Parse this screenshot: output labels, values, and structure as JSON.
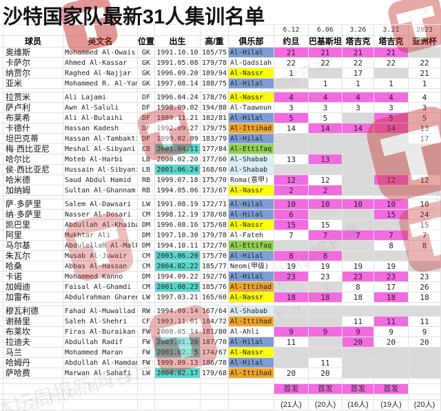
{
  "title": "沙特国家队最新31人集训名单",
  "columns": {
    "player": "球员",
    "name_en": "英文名",
    "pos": "位置",
    "born": "出生",
    "hw": "高/重",
    "club": "俱乐部"
  },
  "matches": [
    {
      "date": "6.12",
      "opp": "约旦"
    },
    {
      "date": "6.06",
      "opp": "巴基斯坦"
    },
    {
      "date": "3.26",
      "opp": "塔吉克"
    },
    {
      "date": "3.21",
      "opp": "塔吉克"
    },
    {
      "date": "2023",
      "opp": "亚洲杯"
    }
  ],
  "legend_starter": "首发",
  "totals": [
    "(21人)",
    "(20人)",
    "(16人)",
    "(19人)",
    "(20人)"
  ],
  "colors": {
    "starter_pink": "#F26BE0",
    "young_teal": "#58D6CD",
    "absent_gray": "#D9D9D9",
    "hilal_blue": "#7D9DD4",
    "nassr_yellow": "#FFFF00",
    "ittihad_orange": "#F0A528",
    "ettifaq_green": "#92D050",
    "shabab_cyan": "#DAEEF3",
    "logo_red": "#C62F2F"
  },
  "club_colors": {
    "Al-Hilal": "hilal_blue",
    "Al-Nassr": "nassr_yellow",
    "Al-Ittihad": "ittihad_orange",
    "Al-Ettifaq": "ettifaq_green",
    "Al-Shabab": "shabab_cyan"
  },
  "group_sizes": [
    4,
    10,
    10,
    7
  ],
  "players": [
    {
      "cn": "奥维斯",
      "en": "Mohammed Al-Owais",
      "pos": "GK",
      "born": "1991.10.10",
      "hl": false,
      "hw": "185/75",
      "club": "Al-Hilal",
      "cells": [
        [
          "21",
          "p"
        ],
        [
          "21",
          "p"
        ],
        [
          "21",
          "p"
        ],
        [
          "21",
          "p"
        ],
        [
          "",
          "g"
        ]
      ]
    },
    {
      "cn": "卡萨尔",
      "en": "Ahmed Al-Kassar",
      "pos": "GK",
      "born": "1991.05.08",
      "hl": false,
      "hw": "179/78",
      "club": "Al-Qadsiah",
      "cells": [
        [
          "22",
          "w"
        ],
        [
          "22",
          "w"
        ],
        [
          "22",
          "w"
        ],
        [
          "22",
          "w"
        ],
        [
          "22",
          "w"
        ]
      ]
    },
    {
      "cn": "纳贾尔",
      "en": "Raghed Al-Najjar",
      "pos": "GK",
      "born": "1996.09.20",
      "hl": false,
      "hw": "189/94",
      "club": "Al-Nassr",
      "cells": [
        [
          "1",
          "w"
        ],
        [
          "",
          "g"
        ],
        [
          "17",
          "w"
        ],
        [
          "",
          "g"
        ],
        [
          "21",
          "w"
        ]
      ]
    },
    {
      "cn": "亚米",
      "en": "Mohammed R. Al-Yami",
      "pos": "GK",
      "born": "1997.08.14",
      "hl": false,
      "hw": "188/75",
      "club": "Al-Hilal",
      "cells": [
        [
          "",
          "g"
        ],
        [
          "1",
          "w"
        ],
        [
          "1",
          "w"
        ],
        [
          "1",
          "w"
        ],
        [
          "1",
          "w"
        ]
      ]
    },
    {
      "cn": "拉贾米",
      "en": "Ali Lajami",
      "pos": "DF",
      "born": "1996.04.24",
      "hl": false,
      "hw": "178/76",
      "club": "Al-Nassr",
      "cells": [
        [
          "4",
          "p"
        ],
        [
          "4",
          "p"
        ],
        [
          "4",
          "p"
        ],
        [
          "4",
          "p"
        ],
        [
          "4",
          "w"
        ]
      ]
    },
    {
      "cn": "萨卢利",
      "en": "Awn Al-Saluli",
      "pos": "DF",
      "born": "1998.09.02",
      "hl": false,
      "hw": "194/88",
      "club": "Al-Taawoun",
      "cells": [
        [
          "3",
          "w"
        ],
        [
          "3",
          "w"
        ],
        [
          "3",
          "w"
        ],
        [
          "3",
          "w"
        ],
        [
          "3",
          "w"
        ]
      ]
    },
    {
      "cn": "布莱希",
      "en": "Ali Al-Bulaihi",
      "pos": "DF",
      "born": "1989.11.21",
      "hl": false,
      "hw": "182/81",
      "club": "Al-Hilal",
      "cells": [
        [
          "5",
          "p"
        ],
        [
          "5",
          "w"
        ],
        [
          "",
          "g"
        ],
        [
          "5",
          "p"
        ],
        [
          "5",
          "w"
        ]
      ]
    },
    {
      "cn": "卡德什",
      "en": "Hassan Kadesh",
      "pos": "DF",
      "born": "1992.09.27",
      "hl": false,
      "hw": "179/75",
      "club": "Al-Ittihad",
      "cells": [
        [
          "14",
          "w"
        ],
        [
          "14",
          "p"
        ],
        [
          "14",
          "p"
        ],
        [
          "14",
          "p"
        ],
        [
          "13",
          "w"
        ]
      ]
    },
    {
      "cn": "坦巴克蒂",
      "en": "Hassan Al-Tambakti",
      "pos": "DF",
      "born": "1999.02.09",
      "hl": false,
      "hw": "183/79",
      "club": "Al-Hilal",
      "cells": [
        [
          "",
          "g"
        ],
        [
          "",
          "g"
        ],
        [
          "",
          "g"
        ],
        [
          "",
          "g"
        ],
        [
          "17",
          "w"
        ]
      ]
    },
    {
      "cn": "梅·西比亚尼",
      "en": "Meshal Al-Sibyani",
      "pos": "CB",
      "born": "2001.04.11",
      "hl": true,
      "hw": "177/84",
      "club": "Al-Ettifaq",
      "cells": [
        [
          "",
          "g"
        ],
        [
          "",
          "g"
        ],
        [
          "",
          "g"
        ],
        [
          "",
          "g"
        ],
        [
          "",
          "g"
        ]
      ]
    },
    {
      "cn": "哈尔比",
      "en": "Moteb Al-Harbi",
      "pos": "LB",
      "born": "2000.02.20",
      "hl": false,
      "hw": "177/60",
      "club": "Al-Shabab",
      "cells": [
        [
          "13",
          "w"
        ],
        [
          "13",
          "p"
        ],
        [
          "",
          "g"
        ],
        [
          "",
          "g"
        ],
        [
          "",
          "g"
        ]
      ]
    },
    {
      "cn": "侯·西比亚尼",
      "en": "Hussain Al-Sibyani",
      "pos": "LB",
      "born": "2001.06.24",
      "hl": true,
      "hw": "168/60",
      "club": "Al-Shabab",
      "cells": [
        [
          "",
          "g"
        ],
        [
          "",
          "g"
        ],
        [
          "",
          "g"
        ],
        [
          "",
          "g"
        ],
        [
          "",
          "g"
        ]
      ]
    },
    {
      "cn": "哈米德",
      "en": "Saud Abdul Hamid",
      "pos": "RB",
      "born": "1999.07.18",
      "hl": false,
      "hw": "175/70",
      "club": "Roma(意甲)",
      "cells": [
        [
          "12",
          "p"
        ],
        [
          "12",
          "w"
        ],
        [
          "",
          "g"
        ],
        [
          "12",
          "p"
        ],
        [
          "12",
          "w"
        ]
      ]
    },
    {
      "cn": "加纳姆",
      "en": "Sultan Al-Ghannam",
      "pos": "RB",
      "born": "1994.05.06",
      "hl": false,
      "hw": "173/67",
      "club": "Al-Nassr",
      "cells": [
        [
          "2",
          "p"
        ],
        [
          "2",
          "p"
        ],
        [
          "",
          "g"
        ],
        [
          "",
          "g"
        ],
        [
          "",
          "g"
        ]
      ]
    },
    {
      "cn": "萨·多萨里",
      "en": "Salem Al-Dawsari",
      "pos": "LW",
      "born": "1991.08.19",
      "hl": false,
      "hw": "172/71",
      "club": "Al-Hilal",
      "cells": [
        [
          "10",
          "p"
        ],
        [
          "10",
          "p"
        ],
        [
          "10",
          "p"
        ],
        [
          "10",
          "p"
        ],
        [
          "10",
          "w"
        ]
      ]
    },
    {
      "cn": "纳·多萨里",
      "en": "Nasser Al-Dosari",
      "pos": "CM",
      "born": "1998.12.19",
      "hl": false,
      "hw": "178/68",
      "club": "Al-Hilal",
      "cells": [
        [
          "6",
          "p"
        ],
        [
          "",
          "g"
        ],
        [
          "",
          "g"
        ],
        [
          "15",
          "p"
        ],
        [
          "24",
          "w"
        ]
      ]
    },
    {
      "cn": "凯巴里",
      "en": "Abdullah Al-Khaibari",
      "pos": "DM",
      "born": "1996.08.16",
      "hl": false,
      "hw": "175/68",
      "club": "Al-Nassr",
      "cells": [
        [
          "15",
          "p"
        ],
        [
          "15",
          "w"
        ],
        [
          "",
          "g"
        ],
        [
          "",
          "g"
        ],
        [
          "15",
          "w"
        ]
      ]
    },
    {
      "cn": "阿里",
      "en": "Mukhtar Ali",
      "pos": "DM",
      "born": "1997.10.30",
      "hl": false,
      "hw": "179/78",
      "club": "Al-Fateh",
      "cells": [
        [
          "7",
          "w"
        ],
        [
          "7",
          "p"
        ],
        [
          "7",
          "p"
        ],
        [
          "7",
          "p"
        ],
        [
          "7",
          "w"
        ]
      ]
    },
    {
      "cn": "马尔基",
      "en": "Abdulellah Al-Malki",
      "pos": "DM",
      "born": "1994.10.11",
      "hl": false,
      "hw": "172/70",
      "club": "Al-Ettifaq",
      "cells": [
        [
          "",
          "g"
        ],
        [
          "",
          "g"
        ],
        [
          "",
          "g"
        ],
        [
          "8",
          "w"
        ],
        [
          "8",
          "w"
        ]
      ]
    },
    {
      "cn": "朱瓦尔",
      "en": "Musab Al-Juwair",
      "pos": "CM",
      "born": "2003.06.20",
      "hl": true,
      "hw": "175/70",
      "club": "Al-Hilal",
      "cells": [
        [
          "8",
          "p"
        ],
        [
          "8",
          "p"
        ],
        [
          "",
          "g"
        ],
        [
          "",
          "g"
        ],
        [
          "",
          "e"
        ]
      ]
    },
    {
      "cn": "哈桑",
      "en": "Abbas Al-Hassan",
      "pos": "CM",
      "born": "2004.02.22",
      "hl": true,
      "hw": "185/77",
      "club": "Neom(甲级)",
      "cells": [
        [
          "19",
          "w"
        ],
        [
          "19",
          "w"
        ],
        [
          "19",
          "w"
        ],
        [
          "19",
          "w"
        ],
        [
          "",
          "g"
        ]
      ]
    },
    {
      "cn": "卡诺",
      "en": "Mohammed Kanno",
      "pos": "DM",
      "born": "1994.09.22",
      "hl": false,
      "hw": "192/76",
      "club": "Al-Hilal",
      "cells": [
        [
          "23",
          "p"
        ],
        [
          "23",
          "w"
        ],
        [
          "23",
          "p"
        ],
        [
          "23",
          "p"
        ],
        [
          "23",
          "w"
        ]
      ]
    },
    {
      "cn": "加姆迪",
      "en": "Faisal Al-Ghamdi",
      "pos": "CM",
      "born": "2001.08.23",
      "hl": true,
      "hw": "185/76",
      "club": "Al-Ittihad",
      "cells": [
        [
          "",
          "g"
        ],
        [
          "",
          "g"
        ],
        [
          "8",
          "w"
        ],
        [
          "17",
          "w"
        ],
        [
          "26",
          "w"
        ]
      ]
    },
    {
      "cn": "加雷布",
      "en": "Abdulrahman Ghareeb",
      "pos": "LW",
      "born": "1997.03.21",
      "hl": false,
      "hw": "165/60",
      "club": "Al-Nassr",
      "cells": [
        [
          "18",
          "p"
        ],
        [
          "18",
          "p"
        ],
        [
          "18",
          "w"
        ],
        [
          "18",
          "p"
        ],
        [
          "18",
          "w"
        ]
      ]
    },
    {
      "cn": "穆瓦利德",
      "en": "Fahad Al-Muwallad",
      "pos": "RW",
      "born": "1994.09.14",
      "hl": false,
      "hw": "167/64",
      "club": "Al-Shabab",
      "cells": [
        [
          "",
          "g"
        ],
        [
          "",
          "g"
        ],
        [
          "",
          "g"
        ],
        [
          "",
          "g"
        ],
        [
          "",
          "g"
        ]
      ]
    },
    {
      "cn": "谢赫里",
      "en": "Saleh Al-Shehri",
      "pos": "CF",
      "born": "1993.11.01",
      "hl": false,
      "hw": "184/72",
      "club": "Al-Ittihad",
      "cells": [
        [
          "",
          "g"
        ],
        [
          "",
          "g"
        ],
        [
          "11",
          "w"
        ],
        [
          "11",
          "p"
        ],
        [
          "11",
          "w"
        ]
      ]
    },
    {
      "cn": "布莱坎",
      "en": "Firas Al-Buraikan",
      "pos": "FW",
      "born": "2000.05.14",
      "hl": false,
      "hw": "181/80",
      "club": "Al-Ahli",
      "cells": [
        [
          "9",
          "p"
        ],
        [
          "9",
          "p"
        ],
        [
          "9",
          "p"
        ],
        [
          "9",
          "w"
        ],
        [
          "9",
          "w"
        ]
      ]
    },
    {
      "cn": "拉迪夫",
      "en": "Abdullah Radif",
      "pos": "FW",
      "born": "2003.01.20",
      "hl": true,
      "hw": "187/70",
      "club": "Al-Hilal",
      "cells": [
        [
          "11",
          "w"
        ],
        [
          "",
          "g"
        ],
        [
          "20",
          "p"
        ],
        [
          "20",
          "w"
        ],
        [
          "20",
          "w"
        ]
      ]
    },
    {
      "cn": "马兰",
      "en": "Mohammed Maran",
      "pos": "FW",
      "born": "2001.02.15",
      "hl": true,
      "hw": "174/67",
      "club": "Al-Nassr",
      "cells": [
        [
          "",
          "g"
        ],
        [
          "",
          "g"
        ],
        [
          "",
          "g"
        ],
        [
          "",
          "g"
        ],
        [
          "",
          "g"
        ]
      ]
    },
    {
      "cn": "哈姆丹",
      "en": "Abdullah Al-Hamdan",
      "pos": "FW",
      "born": "1999.09.13",
      "hl": false,
      "hw": "186/78",
      "club": "Al-Hilal",
      "cells": [
        [
          "",
          "g"
        ],
        [
          "11",
          "w"
        ],
        [
          "",
          "g"
        ],
        [
          "",
          "g"
        ],
        [
          "",
          "g"
        ]
      ]
    },
    {
      "cn": "萨哈费",
      "en": "Marwan Al-Sahafi",
      "pos": "LW",
      "born": "2004.02.17",
      "hl": true,
      "hw": "179/68",
      "club": "Al-Ittihad",
      "cells": [
        [
          "20",
          "w"
        ],
        [
          "20",
          "w"
        ],
        [
          "",
          "g"
        ],
        [
          "",
          "g"
        ],
        [
          "",
          "g"
        ]
      ]
    }
  ],
  "watermark_texts": [
    "体坛周报新闻客户端",
    "S P O R T S",
    "T I T A N"
  ]
}
